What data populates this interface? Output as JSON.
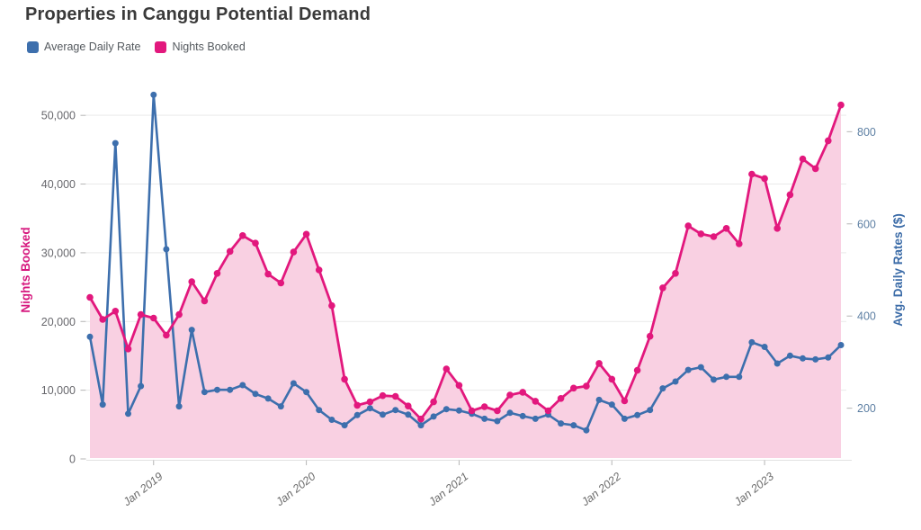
{
  "header": {
    "title": "Properties in Canggu Potential Demand"
  },
  "legend": [
    {
      "label": "Average Daily Rate",
      "color": "#3d6fad"
    },
    {
      "label": "Nights Booked",
      "color": "#e2187d"
    }
  ],
  "chart_data": {
    "type": "line",
    "title": "Properties in Canggu Potential Demand",
    "x": [
      "Aug 2018",
      "Sep 2018",
      "Oct 2018",
      "Nov 2018",
      "Dec 2018",
      "Jan 2019",
      "Feb 2019",
      "Mar 2019",
      "Apr 2019",
      "May 2019",
      "Jun 2019",
      "Jul 2019",
      "Aug 2019",
      "Sep 2019",
      "Oct 2019",
      "Nov 2019",
      "Dec 2019",
      "Jan 2020",
      "Feb 2020",
      "Mar 2020",
      "Apr 2020",
      "May 2020",
      "Jun 2020",
      "Jul 2020",
      "Aug 2020",
      "Sep 2020",
      "Oct 2020",
      "Nov 2020",
      "Dec 2020",
      "Jan 2021",
      "Feb 2021",
      "Mar 2021",
      "Apr 2021",
      "May 2021",
      "Jun 2021",
      "Jul 2021",
      "Aug 2021",
      "Sep 2021",
      "Oct 2021",
      "Nov 2021",
      "Dec 2021",
      "Jan 2022",
      "Feb 2022",
      "Mar 2022",
      "Apr 2022",
      "May 2022",
      "Jun 2022",
      "Jul 2022",
      "Aug 2022",
      "Sep 2022",
      "Oct 2022",
      "Nov 2022",
      "Dec 2022",
      "Jan 2023",
      "Feb 2023",
      "Mar 2023",
      "Apr 2023",
      "May 2023",
      "Jun 2023",
      "Jul 2023"
    ],
    "x_ticks": [
      {
        "label": "Jan 2019",
        "index": 5
      },
      {
        "label": "Jan 2020",
        "index": 17
      },
      {
        "label": "Jan 2021",
        "index": 29
      },
      {
        "label": "Jan 2022",
        "index": 41
      },
      {
        "label": "Jan 2023",
        "index": 53
      }
    ],
    "series": [
      {
        "name": "Nights Booked",
        "axis": "left",
        "color": "#e2187d",
        "area_fill": "#f9d0e2",
        "values": [
          23500,
          20300,
          21500,
          16000,
          21000,
          20500,
          18000,
          21000,
          25800,
          23000,
          27000,
          30200,
          32500,
          31400,
          26900,
          25600,
          30100,
          32700,
          27500,
          22300,
          11600,
          7800,
          8300,
          9200,
          9100,
          7700,
          5800,
          8300,
          13100,
          10700,
          7000,
          7600,
          7000,
          9300,
          9700,
          8400,
          7000,
          8800,
          10300,
          10600,
          13900,
          11600,
          8450,
          12900,
          17850,
          24900,
          27000,
          33900,
          32750,
          32350,
          33550,
          31300,
          41450,
          40800,
          33550,
          38450,
          43650,
          42250,
          46300,
          51500
        ]
      },
      {
        "name": "Average Daily Rate",
        "axis": "right",
        "color": "#3d6fad",
        "values": [
          355,
          208,
          775,
          188,
          248,
          880,
          545,
          204,
          370,
          235,
          240,
          240,
          250,
          231,
          221,
          204,
          254,
          235,
          196,
          175,
          163,
          185,
          200,
          186,
          196,
          186,
          163,
          182,
          198,
          195,
          188,
          177,
          172,
          190,
          183,
          177,
          186,
          167,
          163,
          152,
          218,
          208,
          177,
          185,
          196,
          243,
          258,
          283,
          289,
          262,
          268,
          268,
          343,
          333,
          297,
          314,
          308,
          306,
          310,
          337
        ]
      }
    ],
    "left_axis": {
      "title": "Nights Booked",
      "ticks": [
        0,
        10000,
        20000,
        30000,
        40000,
        50000
      ],
      "range": [
        0,
        55000
      ],
      "title_color": "#d6187e",
      "tick_color": "#67676c"
    },
    "right_axis": {
      "title": "Avg. Daily Rates ($)",
      "ticks": [
        200,
        400,
        600,
        800
      ],
      "range": [
        90,
        910
      ],
      "title_color": "#3c6ca8",
      "tick_color": "#5d7fa3"
    },
    "grid": "horizontal",
    "legend_position": "top-left"
  }
}
